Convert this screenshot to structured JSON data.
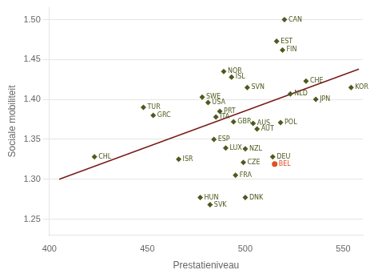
{
  "chart_data": {
    "type": "scatter",
    "xlabel": "Prestatieniveau",
    "ylabel": "Sociale mobiliteit",
    "xlim": [
      400,
      560
    ],
    "ylim": [
      1.23,
      1.515
    ],
    "xticks": [
      400,
      450,
      500,
      550
    ],
    "yticks": [
      {
        "value": 1.25,
        "label": "1.25"
      },
      {
        "value": 1.3,
        "label": "1.30"
      },
      {
        "value": 1.35,
        "label": "1.35"
      },
      {
        "value": 1.4,
        "label": "1.40"
      },
      {
        "value": 1.45,
        "label": "1.45"
      },
      {
        "value": 1.5,
        "label": "1.50"
      }
    ],
    "grid": "y",
    "series": [
      {
        "type": "scatter",
        "marker": "diamond",
        "color": "#4d5a1e",
        "labels": [
          "CAN",
          "EST",
          "FIN",
          "NOR",
          "ISL",
          "CHE",
          "SVN",
          "NLD",
          "SWE",
          "USA",
          "JPN",
          "KOR",
          "TUR",
          "GRC",
          "PRT",
          "ITA",
          "GBR",
          "AUS",
          "AUT",
          "POL",
          "ESP",
          "LUX",
          "NZL",
          "CHL",
          "ISR",
          "CZE",
          "DEU",
          "FRA",
          "HUN",
          "SVK",
          "DNK"
        ],
        "x": [
          520,
          516,
          519,
          489,
          493,
          531,
          501,
          523,
          478,
          481,
          536,
          554,
          448,
          453,
          487,
          485,
          494,
          504,
          506,
          518,
          484,
          490,
          500,
          423,
          466,
          499,
          514,
          495,
          477,
          482,
          500
        ],
        "values": [
          1.5,
          1.473,
          1.462,
          1.435,
          1.428,
          1.423,
          1.415,
          1.407,
          1.403,
          1.396,
          1.4,
          1.415,
          1.39,
          1.38,
          1.385,
          1.378,
          1.372,
          1.37,
          1.363,
          1.371,
          1.35,
          1.339,
          1.338,
          1.328,
          1.325,
          1.321,
          1.328,
          1.305,
          1.277,
          1.268,
          1.277
        ]
      },
      {
        "type": "scatter",
        "marker": "circle",
        "color": "#e05020",
        "labels": [
          "BEL"
        ],
        "x": [
          515
        ],
        "values": [
          1.319
        ]
      },
      {
        "type": "line",
        "color": "#7a1a1a",
        "x": [
          405,
          558
        ],
        "values": [
          1.3,
          1.438
        ]
      }
    ]
  }
}
